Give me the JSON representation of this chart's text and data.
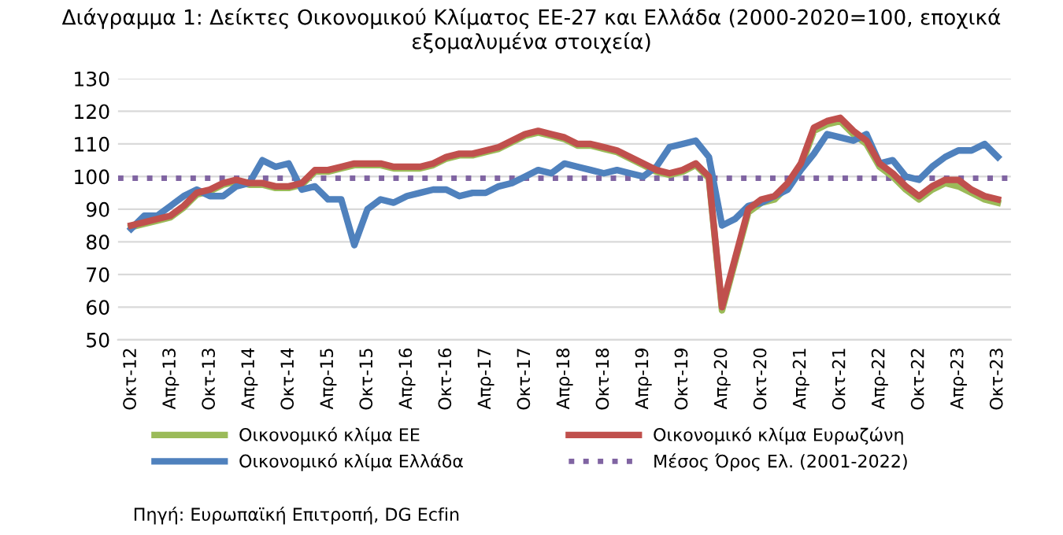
{
  "chart_data": {
    "type": "line",
    "title": "Διάγραμμα 1: Δείκτες Οικονομικού Κλίματος ΕΕ-27 και Ελλάδα (2000-2020=100, εποχικά εξομαλυμένα στοιχεία)",
    "categories": [
      "Οκτ-12",
      null,
      null,
      "Απρ-13",
      null,
      null,
      "Οκτ-13",
      null,
      null,
      "Απρ-14",
      null,
      null,
      "Οκτ-14",
      null,
      null,
      "Απρ-15",
      null,
      null,
      "Οκτ-15",
      null,
      null,
      "Απρ-16",
      null,
      null,
      "Οκτ-16",
      null,
      null,
      "Απρ-17",
      null,
      null,
      "Οκτ-17",
      null,
      null,
      "Απρ-18",
      null,
      null,
      "Οκτ-18",
      null,
      null,
      "Απρ-19",
      null,
      null,
      "Οκτ-19",
      null,
      null,
      "Απρ-20",
      null,
      null,
      "Οκτ-20",
      null,
      null,
      "Απρ-21",
      null,
      null,
      "Οκτ-21",
      null,
      null,
      "Απρ-22",
      null,
      null,
      "Οκτ-22",
      null,
      null,
      "Απρ-23",
      null,
      null,
      "Οκτ-23"
    ],
    "series": [
      {
        "name": "Οικονομικό κλίμα ΕΕ",
        "color": "#9bbb59",
        "values": [
          84.5,
          85.5,
          86.5,
          87.5,
          90.5,
          94.5,
          95.5,
          97.5,
          98.5,
          97.5,
          97.5,
          96.5,
          96.5,
          97.5,
          101.5,
          101.5,
          102.5,
          103.5,
          103.5,
          103.5,
          102.5,
          102.5,
          102.5,
          103.5,
          105.5,
          106.5,
          106.5,
          107.5,
          108.5,
          110.5,
          112.5,
          113.5,
          112.5,
          111.5,
          109.5,
          109.5,
          108.5,
          107.5,
          105.5,
          103.5,
          101.5,
          100.5,
          101.5,
          103.5,
          99.5,
          59,
          74,
          89,
          92,
          93,
          97,
          103,
          114,
          116,
          117,
          113,
          110,
          103,
          100,
          96,
          93,
          96,
          98,
          97,
          95,
          93,
          92
        ]
      },
      {
        "name": "Οικονομικό κλίμα Ελλάδα",
        "color": "#4f81bd",
        "values": [
          84,
          88,
          88,
          91,
          94,
          96,
          94,
          94,
          97,
          98,
          105,
          103,
          104,
          96,
          97,
          93,
          93,
          79,
          90,
          93,
          92,
          94,
          95,
          96,
          96,
          94,
          95,
          95,
          97,
          98,
          100,
          102,
          101,
          104,
          103,
          102,
          101,
          102,
          101,
          100,
          103,
          109,
          110,
          111,
          106,
          85,
          87,
          91,
          92,
          94,
          96,
          102,
          107,
          113,
          112,
          111,
          113,
          104,
          105,
          100,
          99,
          103,
          106,
          108,
          108,
          110,
          106
        ]
      },
      {
        "name": "Οικονομικό κλίμα Ευρωζώνη",
        "color": "#c0504d",
        "values": [
          85,
          86,
          87,
          88,
          91,
          95,
          96,
          98,
          99,
          98,
          98,
          97,
          97,
          98,
          102,
          102,
          103,
          104,
          104,
          104,
          103,
          103,
          103,
          104,
          106,
          107,
          107,
          108,
          109,
          111,
          113,
          114,
          113,
          112,
          110,
          110,
          109,
          108,
          106,
          104,
          102,
          101,
          102,
          104,
          100,
          60,
          75,
          90,
          93,
          94,
          98,
          104,
          115,
          117,
          118,
          114,
          111,
          104,
          101,
          97,
          94,
          97,
          99,
          99,
          96,
          94,
          93
        ]
      }
    ],
    "ref_lines": [
      {
        "axis": "y",
        "value": 99.5,
        "label": "Μέσος Όρος Ελ. (2001-2022)",
        "color": "#8064a2",
        "line_style": "dotted"
      }
    ],
    "ylim": [
      50,
      130
    ],
    "yticks": [
      50,
      60,
      70,
      80,
      90,
      100,
      110,
      120,
      130
    ],
    "grid": "y",
    "legend": "bottom",
    "marker": "none",
    "line_style": "solid",
    "annotations": [
      "Πηγή: Ευρωπαϊκή Επιτροπή, DG Ecfin"
    ]
  }
}
